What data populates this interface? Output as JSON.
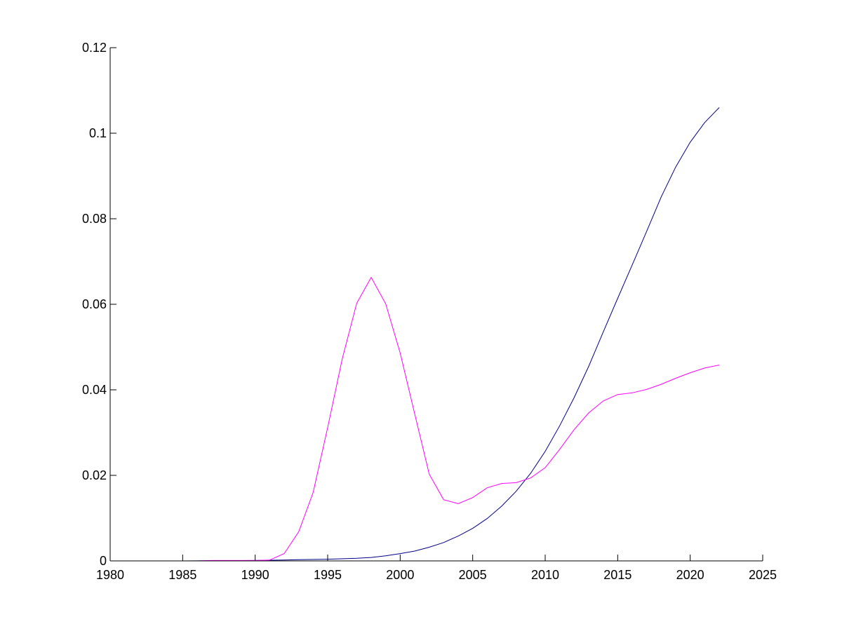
{
  "chart_data": {
    "type": "line",
    "title": "",
    "xlabel": "",
    "ylabel": "",
    "xlim": [
      1980,
      2025
    ],
    "ylim": [
      0,
      0.12
    ],
    "grid": false,
    "x_ticks": [
      "1980",
      "1985",
      "1990",
      "1995",
      "2000",
      "2005",
      "2010",
      "2015",
      "2020",
      "2025"
    ],
    "y_ticks": [
      "0",
      "0.02",
      "0.04",
      "0.06",
      "0.08",
      "0.1",
      "0.12"
    ],
    "x_tick_values": [
      1980,
      1985,
      1990,
      1995,
      2000,
      2005,
      2010,
      2015,
      2020,
      2025
    ],
    "y_tick_values": [
      0,
      0.02,
      0.04,
      0.06,
      0.08,
      0.1,
      0.12
    ],
    "series": [
      {
        "color": "#00008b",
        "points": [
          [
            1980,
            0
          ],
          [
            1985,
            0
          ],
          [
            1990,
            0.0001
          ],
          [
            1992,
            0.0002
          ],
          [
            1993,
            0.0003
          ],
          [
            1995,
            0.0004
          ],
          [
            1997,
            0.0006
          ],
          [
            1998,
            0.0008
          ],
          [
            1999,
            0.0012
          ],
          [
            2000,
            0.0017
          ],
          [
            2001,
            0.0023
          ],
          [
            2002,
            0.0032
          ],
          [
            2003,
            0.0043
          ],
          [
            2004,
            0.0058
          ],
          [
            2005,
            0.0076
          ],
          [
            2006,
            0.0099
          ],
          [
            2007,
            0.0128
          ],
          [
            2008,
            0.0163
          ],
          [
            2009,
            0.0205
          ],
          [
            2010,
            0.0256
          ],
          [
            2011,
            0.0316
          ],
          [
            2012,
            0.0382
          ],
          [
            2013,
            0.0455
          ],
          [
            2014,
            0.0535
          ],
          [
            2015,
            0.0614
          ],
          [
            2016,
            0.0692
          ],
          [
            2017,
            0.0771
          ],
          [
            2018,
            0.0851
          ],
          [
            2019,
            0.0921
          ],
          [
            2020,
            0.0979
          ],
          [
            2021,
            0.1025
          ],
          [
            2022,
            0.106
          ]
        ]
      },
      {
        "color": "#ff00ff",
        "points": [
          [
            1980,
            0
          ],
          [
            1986,
            0
          ],
          [
            1987,
            0.0001
          ],
          [
            1990,
            0.0001
          ],
          [
            1991,
            0.0002
          ],
          [
            1992,
            0.0017
          ],
          [
            1993,
            0.0068
          ],
          [
            1994,
            0.016
          ],
          [
            1995,
            0.0312
          ],
          [
            1996,
            0.0472
          ],
          [
            1997,
            0.0602
          ],
          [
            1998,
            0.0663
          ],
          [
            1999,
            0.0601
          ],
          [
            2000,
            0.0486
          ],
          [
            2001,
            0.0344
          ],
          [
            2002,
            0.0203
          ],
          [
            2003,
            0.0143
          ],
          [
            2004,
            0.0134
          ],
          [
            2005,
            0.0148
          ],
          [
            2006,
            0.0171
          ],
          [
            2007,
            0.0181
          ],
          [
            2008,
            0.0183
          ],
          [
            2009,
            0.0194
          ],
          [
            2010,
            0.0218
          ],
          [
            2011,
            0.0261
          ],
          [
            2012,
            0.0307
          ],
          [
            2013,
            0.0346
          ],
          [
            2014,
            0.0374
          ],
          [
            2015,
            0.0389
          ],
          [
            2016,
            0.0393
          ],
          [
            2017,
            0.0401
          ],
          [
            2018,
            0.0413
          ],
          [
            2019,
            0.0427
          ],
          [
            2020,
            0.044
          ],
          [
            2021,
            0.0451
          ],
          [
            2022,
            0.0458
          ]
        ]
      }
    ]
  }
}
